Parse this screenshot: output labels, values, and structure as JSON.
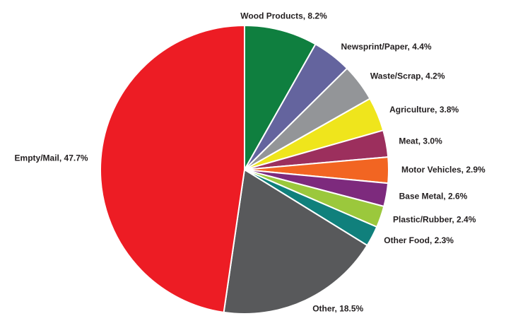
{
  "chart_data": {
    "type": "pie",
    "labels": [
      "Wood Products, 8.2%",
      "Newsprint/Paper, 4.4%",
      "Waste/Scrap, 4.2%",
      "Agriculture, 3.8%",
      "Meat, 3.0%",
      "Motor Vehicles, 2.9%",
      "Base Metal, 2.6%",
      "Plastic/Rubber, 2.4%",
      "Other Food, 2.3%",
      "Other, 18.5%",
      "Empty/Mail, 47.7%"
    ],
    "values": [
      8.2,
      4.4,
      4.2,
      3.8,
      3.0,
      2.9,
      2.6,
      2.4,
      2.3,
      18.5,
      47.7
    ],
    "colors": [
      "#0f7f3f",
      "#64649e",
      "#939598",
      "#efe51c",
      "#9c2f5d",
      "#f26522",
      "#7d2a7d",
      "#9bc83c",
      "#10807c",
      "#58595b",
      "#ed1c24"
    ]
  }
}
